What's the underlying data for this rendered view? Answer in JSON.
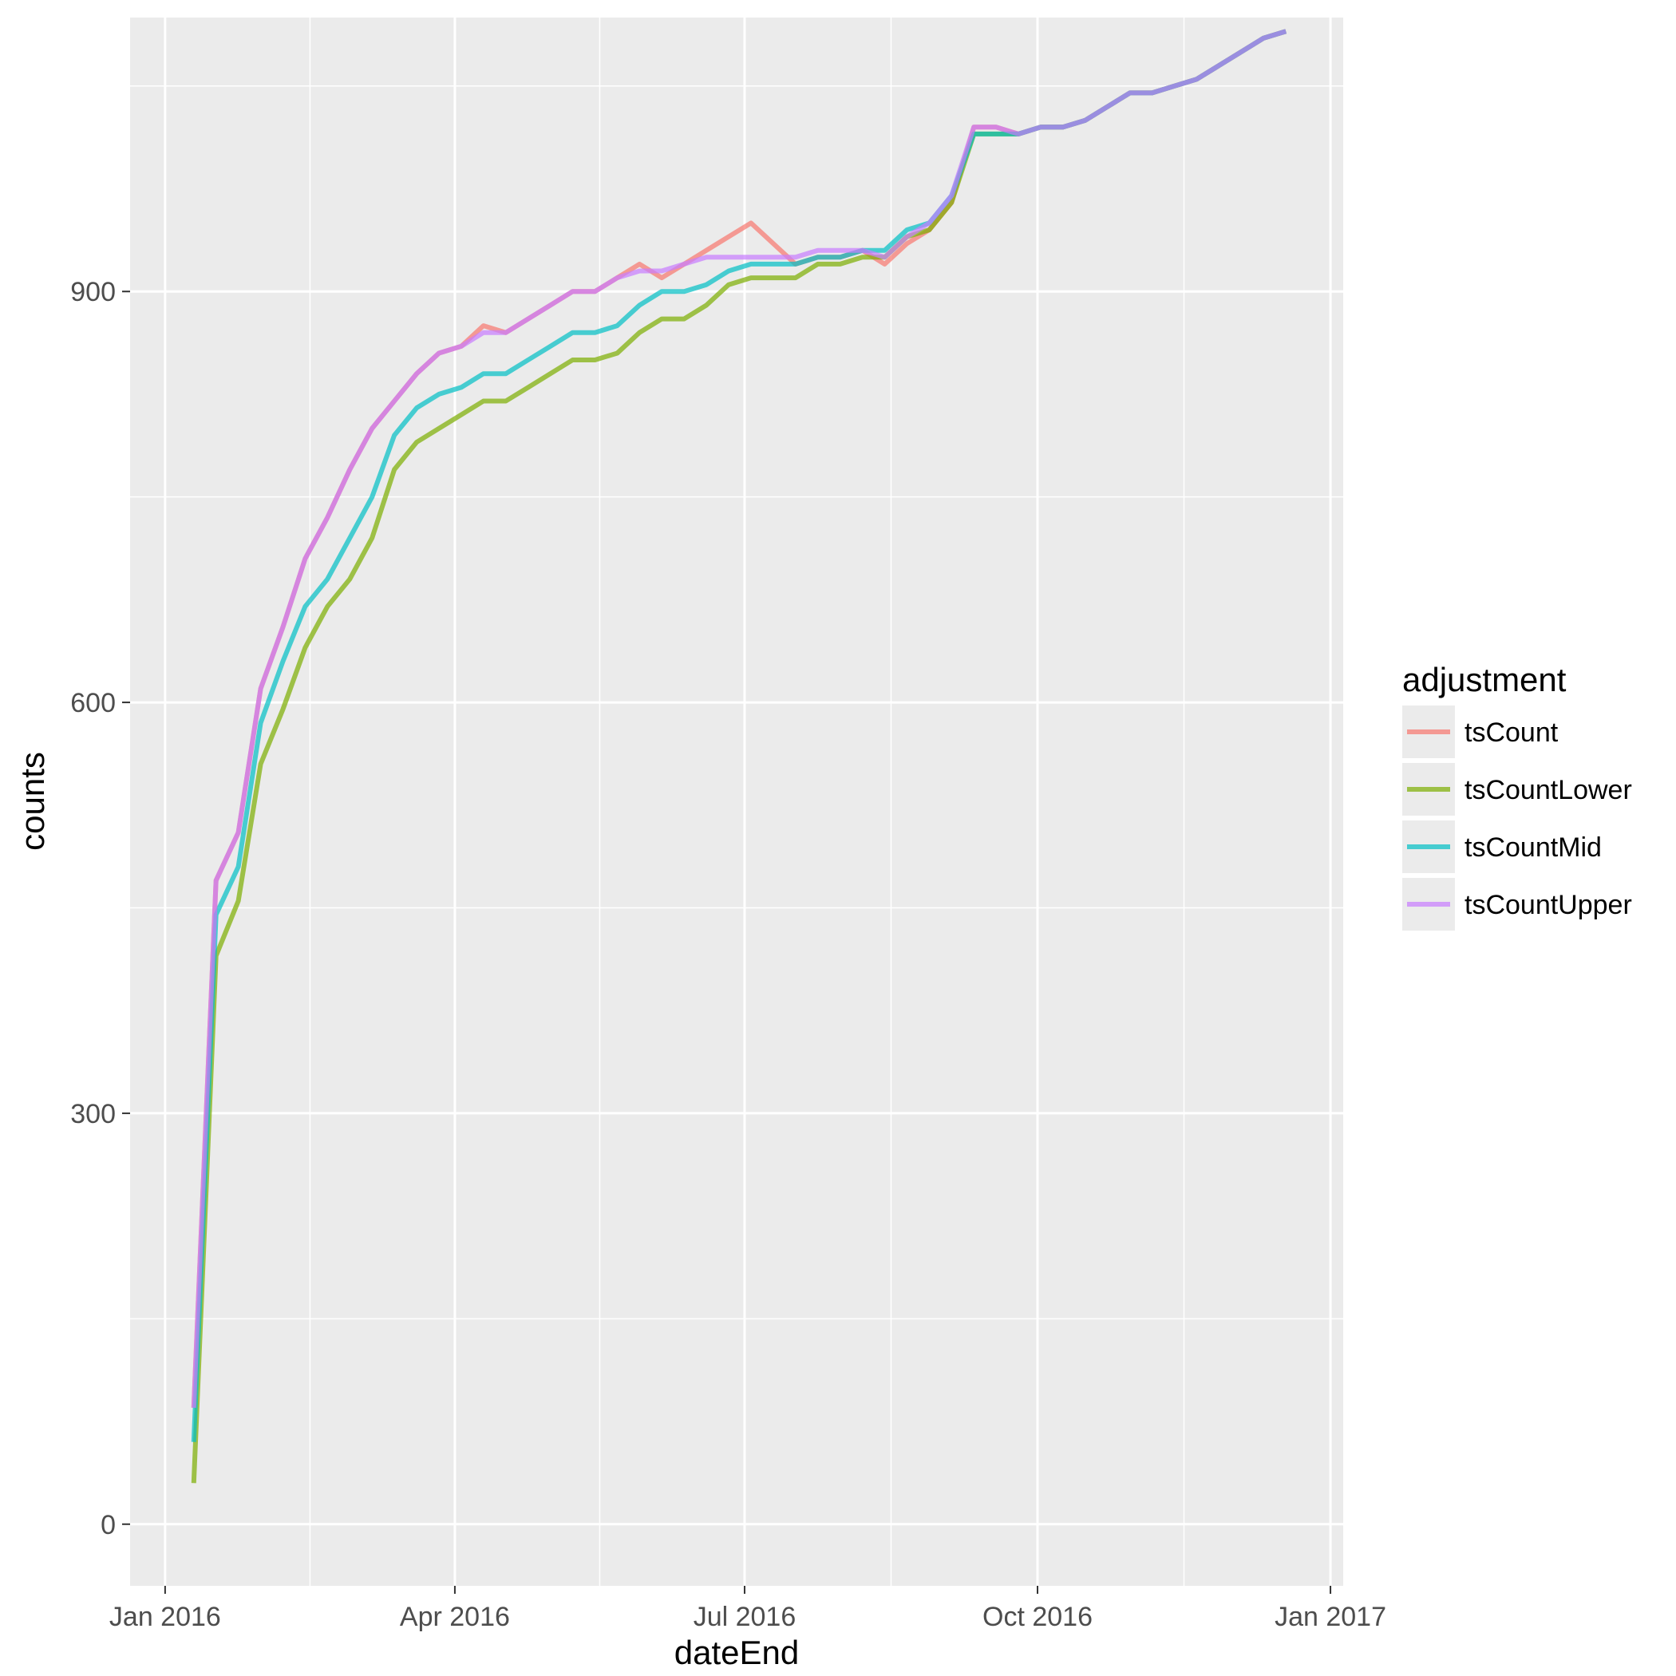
{
  "chart_data": {
    "type": "line",
    "title": "",
    "xlabel": "dateEnd",
    "ylabel": "counts",
    "x_type": "date",
    "xlim": [
      "2015-12-21",
      "2017-01-05"
    ],
    "ylim": [
      -45,
      1100
    ],
    "y_ticks": [
      0,
      300,
      600,
      900
    ],
    "y_tick_labels": [
      "0",
      "300",
      "600",
      "900"
    ],
    "x_ticks": [
      "2016-01-01",
      "2016-04-01",
      "2016-07-01",
      "2016-10-01",
      "2017-01-01"
    ],
    "x_tick_labels": [
      "Jan 2016",
      "Apr 2016",
      "Jul 2016",
      "Oct 2016",
      "Jan 2017"
    ],
    "grid": true,
    "legend_title": "adjustment",
    "legend_position": "right",
    "x": [
      "2016-01-10",
      "2016-01-17",
      "2016-01-24",
      "2016-01-31",
      "2016-02-07",
      "2016-02-14",
      "2016-02-21",
      "2016-02-28",
      "2016-03-06",
      "2016-03-13",
      "2016-03-20",
      "2016-03-27",
      "2016-04-03",
      "2016-04-10",
      "2016-04-17",
      "2016-04-24",
      "2016-05-01",
      "2016-05-08",
      "2016-05-15",
      "2016-05-22",
      "2016-05-29",
      "2016-06-05",
      "2016-06-12",
      "2016-06-19",
      "2016-06-26",
      "2016-07-03",
      "2016-07-10",
      "2016-07-17",
      "2016-07-24",
      "2016-07-31",
      "2016-08-07",
      "2016-08-14",
      "2016-08-21",
      "2016-08-28",
      "2016-09-04",
      "2016-09-11",
      "2016-09-18",
      "2016-09-25",
      "2016-10-02",
      "2016-10-09",
      "2016-10-16",
      "2016-10-23",
      "2016-10-30",
      "2016-11-06",
      "2016-11-13",
      "2016-11-20",
      "2016-11-27",
      "2016-12-04",
      "2016-12-11",
      "2016-12-18"
    ],
    "series": [
      {
        "name": "tsCount",
        "color": "#F8766D",
        "values": [
          85,
          470,
          505,
          610,
          655,
          705,
          735,
          770,
          800,
          820,
          840,
          855,
          860,
          875,
          870,
          880,
          890,
          900,
          900,
          910,
          920,
          910,
          920,
          930,
          940,
          950,
          935,
          920,
          925,
          925,
          930,
          920,
          935,
          945,
          965,
          1020,
          1020,
          1015,
          1020,
          1020,
          1025,
          1035,
          1045,
          1045,
          1050,
          1055,
          1065,
          1075,
          1085,
          1090
        ]
      },
      {
        "name": "tsCountLower",
        "color": "#7CAE00",
        "values": [
          30,
          415,
          455,
          555,
          595,
          640,
          670,
          690,
          720,
          770,
          790,
          800,
          810,
          820,
          820,
          830,
          840,
          850,
          850,
          855,
          870,
          880,
          880,
          890,
          905,
          910,
          910,
          910,
          920,
          920,
          925,
          925,
          940,
          945,
          965,
          1015,
          1015,
          1015,
          1020,
          1020,
          1025,
          1035,
          1045,
          1045,
          1050,
          1055,
          1065,
          1075,
          1085,
          1090
        ]
      },
      {
        "name": "tsCountMid",
        "color": "#00BFC4",
        "values": [
          60,
          445,
          480,
          585,
          630,
          670,
          690,
          720,
          750,
          795,
          815,
          825,
          830,
          840,
          840,
          850,
          860,
          870,
          870,
          875,
          890,
          900,
          900,
          905,
          915,
          920,
          920,
          920,
          925,
          925,
          930,
          930,
          945,
          950,
          970,
          1015,
          1015,
          1015,
          1020,
          1020,
          1025,
          1035,
          1045,
          1045,
          1050,
          1055,
          1065,
          1075,
          1085,
          1090
        ]
      },
      {
        "name": "tsCountUpper",
        "color": "#C77CFF",
        "values": [
          85,
          470,
          505,
          610,
          655,
          705,
          735,
          770,
          800,
          820,
          840,
          855,
          860,
          870,
          870,
          880,
          890,
          900,
          900,
          910,
          915,
          915,
          920,
          925,
          925,
          925,
          925,
          925,
          930,
          930,
          930,
          925,
          940,
          950,
          970,
          1020,
          1020,
          1015,
          1020,
          1020,
          1025,
          1035,
          1045,
          1045,
          1050,
          1055,
          1065,
          1075,
          1085,
          1090
        ]
      }
    ]
  }
}
